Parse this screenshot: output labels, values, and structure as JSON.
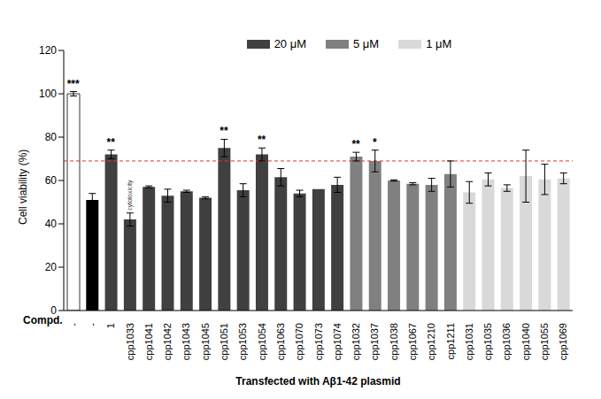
{
  "chart_data": {
    "type": "bar",
    "x_label": "Transfected with Aβ1-42 plasmid",
    "y_label": "Cell viability (%)",
    "category_label": "Compd.",
    "categories": [
      "-",
      "-",
      "1",
      "cpp1033",
      "cpp1041",
      "cpp1042",
      "cpp1043",
      "cpp1045",
      "cpp1051",
      "cpp1053",
      "cpp1054",
      "cpp1063",
      "cpp1070",
      "cpp1073",
      "cpp1074",
      "cpp1032",
      "cpp1037",
      "cpp1038",
      "cpp1067",
      "cpp1210",
      "cpp1211",
      "cpp1031",
      "cpp1035",
      "cpp1036",
      "cpp1040",
      "cpp1055",
      "cpp1069"
    ],
    "series": [
      {
        "color": "#ffffff",
        "values": [
          100,
          null,
          null,
          null,
          null,
          null,
          null,
          null,
          null,
          null,
          null,
          null,
          null,
          null,
          null,
          null,
          null,
          null,
          null,
          null,
          null,
          null,
          null,
          null,
          null,
          null,
          null
        ],
        "errors": [
          1,
          null,
          null,
          null,
          null,
          null,
          null,
          null,
          null,
          null,
          null,
          null,
          null,
          null,
          null,
          null,
          null,
          null,
          null,
          null,
          null,
          null,
          null,
          null,
          null,
          null,
          null
        ]
      },
      {
        "color": "#000000",
        "values": [
          null,
          51,
          null,
          null,
          null,
          null,
          null,
          null,
          null,
          null,
          null,
          null,
          null,
          null,
          null,
          null,
          null,
          null,
          null,
          null,
          null,
          null,
          null,
          null,
          null,
          null,
          null
        ],
        "errors": [
          null,
          3,
          null,
          null,
          null,
          null,
          null,
          null,
          null,
          null,
          null,
          null,
          null,
          null,
          null,
          null,
          null,
          null,
          null,
          null,
          null,
          null,
          null,
          null,
          null,
          null,
          null
        ]
      },
      {
        "name": "20 μM",
        "color": "#404040",
        "values": [
          null,
          null,
          72,
          42,
          57,
          53,
          55,
          52,
          75,
          55.5,
          72,
          61.5,
          54,
          56,
          58,
          null,
          null,
          null,
          null,
          null,
          null,
          null,
          null,
          null,
          null,
          null,
          null
        ],
        "errors": [
          null,
          null,
          2,
          3,
          0.5,
          3,
          0.5,
          0.5,
          4,
          3,
          3,
          4,
          1.5,
          0,
          3.5,
          null,
          null,
          null,
          null,
          null,
          null,
          null,
          null,
          null,
          null,
          null,
          null
        ]
      },
      {
        "name": "5 μM",
        "color": "#808080",
        "values": [
          null,
          null,
          null,
          null,
          null,
          null,
          null,
          null,
          null,
          null,
          null,
          null,
          null,
          null,
          null,
          71,
          69,
          60,
          58.5,
          58,
          63,
          null,
          null,
          null,
          null,
          null,
          null
        ],
        "errors": [
          null,
          null,
          null,
          null,
          null,
          null,
          null,
          null,
          null,
          null,
          null,
          null,
          null,
          null,
          null,
          2,
          5,
          0.3,
          0.5,
          3,
          6,
          null,
          null,
          null,
          null,
          null,
          null
        ]
      },
      {
        "name": "1 μM",
        "color": "#d9d9d9",
        "values": [
          null,
          null,
          null,
          null,
          null,
          null,
          null,
          null,
          null,
          null,
          null,
          null,
          null,
          null,
          null,
          null,
          null,
          null,
          null,
          null,
          null,
          54.5,
          60.5,
          56.5,
          62,
          60.5,
          61
        ],
        "errors": [
          null,
          null,
          null,
          null,
          null,
          null,
          null,
          null,
          null,
          null,
          null,
          null,
          null,
          null,
          null,
          null,
          null,
          null,
          null,
          null,
          null,
          5,
          3,
          1.5,
          12,
          7,
          2.5
        ]
      }
    ],
    "significance": [
      "***",
      null,
      "**",
      null,
      null,
      null,
      null,
      null,
      "**",
      null,
      "**",
      null,
      null,
      null,
      null,
      "**",
      "*",
      null,
      null,
      null,
      null,
      null,
      null,
      null,
      null,
      null,
      null
    ],
    "bar_notes": [
      null,
      null,
      null,
      "cytotoxicity",
      null,
      null,
      null,
      null,
      null,
      null,
      null,
      null,
      null,
      null,
      null,
      null,
      null,
      null,
      null,
      null,
      null,
      null,
      null,
      null,
      null,
      null,
      null
    ],
    "reference_line": 69,
    "ylim": [
      0,
      120
    ],
    "yticks": [
      0,
      20,
      40,
      60,
      80,
      100,
      120
    ],
    "grid": false,
    "legend": "top"
  }
}
